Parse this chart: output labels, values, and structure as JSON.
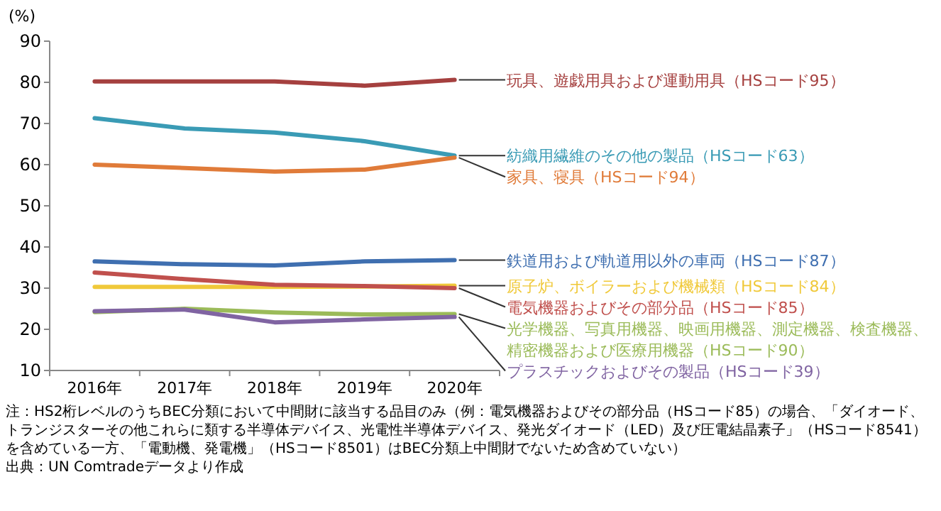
{
  "chart_data": {
    "type": "line",
    "ylabel": "(%)",
    "categories": [
      "2016年",
      "2017年",
      "2018年",
      "2019年",
      "2020年"
    ],
    "ylim": [
      10,
      90
    ],
    "yticks": [
      10,
      20,
      30,
      40,
      50,
      60,
      70,
      80,
      90
    ],
    "grid": false,
    "marker": "none",
    "line_style": "solid",
    "series": [
      {
        "name": "玩具、遊戯用具および運動用具（HSコード95）",
        "color": "#a5403f",
        "values": [
          80.2,
          80.2,
          80.2,
          79.2,
          80.6
        ]
      },
      {
        "name": "紡織用繊維のその他の製品（HSコード63）",
        "color": "#3a9bb5",
        "values": [
          71.3,
          68.8,
          67.8,
          65.7,
          62.2
        ]
      },
      {
        "name": "家具、寝具（HSコード94）",
        "color": "#e07b39",
        "values": [
          60.0,
          59.2,
          58.3,
          58.8,
          61.7
        ]
      },
      {
        "name": "鉄道用および軌道用以外の車両（HSコード87）",
        "color": "#3f6fb0",
        "values": [
          36.5,
          35.8,
          35.5,
          36.5,
          36.8
        ]
      },
      {
        "name": "原子炉、ボイラーおよび機械類（HSコード84）",
        "color": "#f0c93a",
        "values": [
          30.3,
          30.3,
          30.3,
          30.4,
          30.6
        ]
      },
      {
        "name": "電気機器およびその部分品（HSコード85）",
        "color": "#c0504d",
        "values": [
          33.8,
          32.2,
          30.8,
          30.5,
          30.0
        ]
      },
      {
        "name": "光学機器、写真用機器、映画用機器、測定機器、検査機器、精密機器および医療用機器（HSコード90）",
        "color": "#9bbb59",
        "values": [
          24.2,
          25.0,
          24.1,
          23.6,
          23.7
        ]
      },
      {
        "name": "プラスチックおよびその製品（HSコード39）",
        "color": "#8064a2",
        "values": [
          24.4,
          24.8,
          21.7,
          22.4,
          23.0
        ]
      }
    ],
    "annotations": [
      "注：HS2桁レベルのうちBEC分類において中間財に該当する品目のみ（例：電気機器およびその部分品（HSコード85）の場合、「ダイオード、トランジスターその他これらに類する半導体デバイス、光電性半導体デバイス、発光ダイオード（LED）及び圧電結晶素子」（HSコード8541）を含めている一方、「電動機、発電機」（HSコード8501）はBEC分類上中間財でないため含めていない）",
      "出典：UN Comtradeデータより作成"
    ]
  }
}
